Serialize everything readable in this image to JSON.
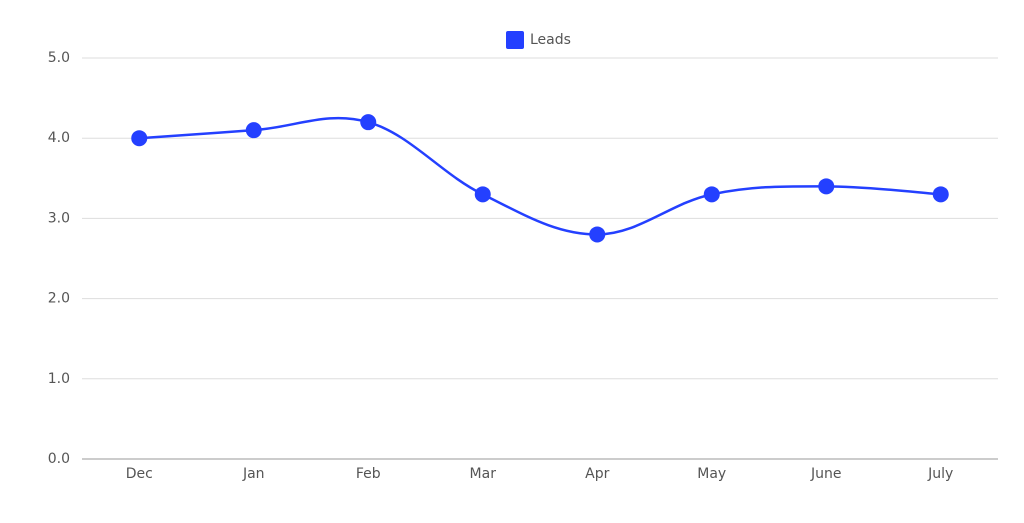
{
  "chart_data": {
    "type": "line",
    "categories": [
      "Dec",
      "Jan",
      "Feb",
      "Mar",
      "Apr",
      "May",
      "June",
      "July"
    ],
    "series": [
      {
        "name": "Leads",
        "color": "#2440ff",
        "values": [
          4.0,
          4.1,
          4.2,
          3.3,
          2.8,
          3.3,
          3.4,
          3.3
        ]
      }
    ],
    "ylim": [
      0,
      5
    ],
    "yticks": [
      {
        "value": 0,
        "label": "0.0"
      },
      {
        "value": 1,
        "label": "1.0"
      },
      {
        "value": 2,
        "label": "2.0"
      },
      {
        "value": 3,
        "label": "3.0"
      },
      {
        "value": 4,
        "label": "4.0"
      },
      {
        "value": 5,
        "label": "5.0"
      }
    ],
    "grid": true,
    "legend": "top"
  }
}
